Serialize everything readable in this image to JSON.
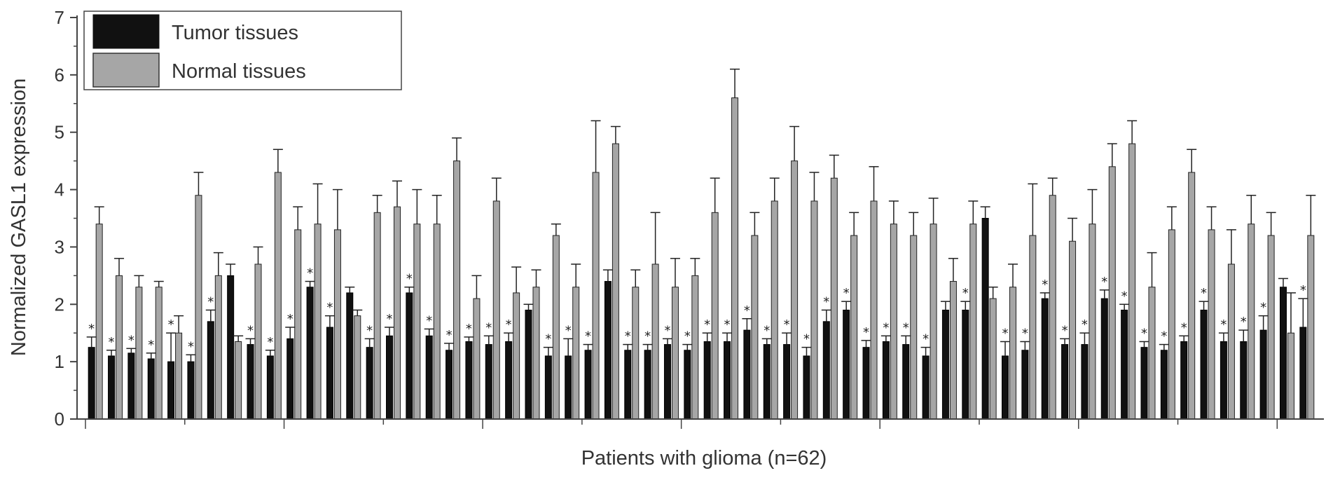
{
  "chart_data": {
    "type": "bar",
    "title": "",
    "xlabel": "Patients with glioma (n=62)",
    "ylabel": "Normalized GASL1 expression",
    "ylim": [
      0,
      7
    ],
    "yticks": [
      0,
      1,
      2,
      3,
      4,
      5,
      6,
      7
    ],
    "significance_marker": "*",
    "colors": {
      "tumor": "#111111",
      "normal": "#a6a6a6",
      "axis": "#444444",
      "text": "#333333"
    },
    "legend": {
      "placement": "top-left"
    },
    "series": [
      {
        "name": "Tumor tissues",
        "values": [
          1.25,
          1.1,
          1.15,
          1.05,
          1.0,
          1.0,
          1.7,
          2.5,
          1.3,
          1.1,
          1.4,
          2.3,
          1.6,
          2.2,
          1.25,
          1.45,
          2.2,
          1.45,
          1.2,
          1.35,
          1.3,
          1.35,
          1.9,
          1.1,
          1.1,
          1.2,
          2.4,
          1.2,
          1.2,
          1.3,
          1.2,
          1.35,
          1.35,
          1.55,
          1.3,
          1.3,
          1.1,
          1.7,
          1.9,
          1.25,
          1.35,
          1.3,
          1.1,
          1.9,
          1.9,
          3.5,
          1.1,
          1.2,
          2.1,
          1.3,
          1.3,
          2.1,
          1.9,
          1.25,
          1.2,
          1.35,
          1.9,
          1.35,
          1.35,
          1.55,
          2.3,
          1.6
        ],
        "errors": [
          0.18,
          0.1,
          0.08,
          0.1,
          0.5,
          0.12,
          0.2,
          0.2,
          0.1,
          0.1,
          0.2,
          0.1,
          0.2,
          0.1,
          0.15,
          0.15,
          0.1,
          0.12,
          0.12,
          0.08,
          0.15,
          0.15,
          0.1,
          0.15,
          0.3,
          0.1,
          0.2,
          0.1,
          0.1,
          0.1,
          0.1,
          0.15,
          0.15,
          0.2,
          0.1,
          0.2,
          0.15,
          0.2,
          0.15,
          0.12,
          0.1,
          0.15,
          0.15,
          0.15,
          0.15,
          0.2,
          0.25,
          0.15,
          0.1,
          0.1,
          0.2,
          0.15,
          0.1,
          0.1,
          0.1,
          0.1,
          0.15,
          0.15,
          0.2,
          0.25,
          0.15,
          0.5
        ]
      },
      {
        "name": "Normal tissues",
        "values": [
          3.4,
          2.5,
          2.3,
          2.3,
          1.5,
          3.9,
          2.5,
          1.35,
          2.7,
          4.3,
          3.3,
          3.4,
          3.3,
          1.8,
          3.6,
          3.7,
          3.4,
          3.4,
          4.5,
          2.1,
          3.8,
          2.2,
          2.3,
          3.2,
          2.3,
          4.3,
          4.8,
          2.3,
          2.7,
          2.3,
          2.5,
          3.6,
          5.6,
          3.2,
          3.8,
          4.5,
          3.8,
          4.2,
          3.2,
          3.8,
          3.4,
          3.2,
          3.4,
          2.4,
          3.4,
          2.1,
          2.3,
          3.2,
          3.9,
          3.1,
          3.4,
          4.4,
          4.8,
          2.3,
          3.3,
          4.3,
          3.3,
          2.7,
          3.4,
          3.2,
          1.5,
          3.2
        ],
        "errors": [
          0.3,
          0.3,
          0.2,
          0.1,
          0.3,
          0.4,
          0.4,
          0.1,
          0.3,
          0.4,
          0.4,
          0.7,
          0.7,
          0.1,
          0.3,
          0.45,
          0.6,
          0.5,
          0.4,
          0.4,
          0.4,
          0.45,
          0.3,
          0.2,
          0.4,
          0.9,
          0.3,
          0.3,
          0.9,
          0.5,
          0.3,
          0.6,
          0.5,
          0.4,
          0.4,
          0.6,
          0.5,
          0.4,
          0.4,
          0.6,
          0.4,
          0.4,
          0.45,
          0.4,
          0.4,
          0.2,
          0.4,
          0.9,
          0.3,
          0.4,
          0.6,
          0.4,
          0.4,
          0.6,
          0.4,
          0.4,
          0.4,
          0.6,
          0.5,
          0.4,
          0.7,
          0.7
        ]
      }
    ],
    "significant": [
      1,
      1,
      1,
      1,
      1,
      1,
      1,
      0,
      1,
      1,
      1,
      1,
      1,
      0,
      1,
      1,
      1,
      1,
      1,
      1,
      1,
      1,
      0,
      1,
      1,
      1,
      0,
      1,
      1,
      1,
      1,
      1,
      1,
      1,
      1,
      1,
      1,
      1,
      1,
      1,
      1,
      1,
      1,
      0,
      1,
      0,
      1,
      1,
      1,
      1,
      1,
      1,
      1,
      1,
      1,
      1,
      1,
      1,
      1,
      1,
      0,
      1
    ]
  }
}
